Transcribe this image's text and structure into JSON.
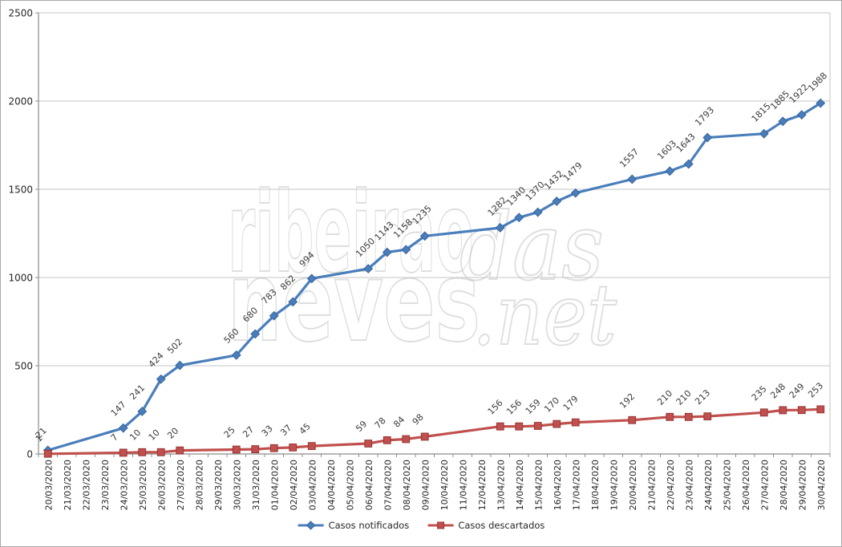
{
  "chart_data": {
    "type": "line",
    "title": "",
    "xlabel": "",
    "ylabel": "",
    "categories": [
      "20/03/2020",
      "21/03/2020",
      "22/03/2020",
      "23/03/2020",
      "24/03/2020",
      "25/03/2020",
      "26/03/2020",
      "27/03/2020",
      "28/03/2020",
      "29/03/2020",
      "30/03/2020",
      "31/03/2020",
      "01/04/2020",
      "02/04/2020",
      "03/04/2020",
      "04/04/2020",
      "05/04/2020",
      "06/04/2020",
      "07/04/2020",
      "08/04/2020",
      "09/04/2020",
      "10/04/2020",
      "11/04/2020",
      "12/04/2020",
      "13/04/2020",
      "14/04/2020",
      "15/04/2020",
      "16/04/2020",
      "17/04/2020",
      "18/04/2020",
      "19/04/2020",
      "20/04/2020",
      "21/04/2020",
      "22/04/2020",
      "23/04/2020",
      "24/04/2020",
      "25/04/2020",
      "26/04/2020",
      "27/04/2020",
      "28/04/2020",
      "29/04/2020",
      "30/04/2020"
    ],
    "series": [
      {
        "name": "Casos notificados",
        "color": "#4a7ebb",
        "marker": "diamond",
        "marker_edge": "#38639c",
        "values": [
          21,
          null,
          null,
          null,
          147,
          241,
          424,
          502,
          null,
          null,
          560,
          680,
          783,
          862,
          994,
          null,
          null,
          1050,
          1143,
          1158,
          1235,
          null,
          null,
          null,
          1282,
          1340,
          1370,
          1432,
          1479,
          null,
          null,
          1557,
          null,
          1603,
          1643,
          1793,
          null,
          null,
          1815,
          1885,
          1922,
          1988
        ]
      },
      {
        "name": "Casos descartados",
        "color": "#c0504d",
        "marker": "square",
        "marker_edge": "#953735",
        "values": [
          1,
          null,
          null,
          null,
          7,
          10,
          10,
          20,
          null,
          null,
          25,
          27,
          33,
          37,
          45,
          null,
          null,
          59,
          78,
          84,
          98,
          null,
          null,
          null,
          156,
          156,
          159,
          170,
          179,
          null,
          null,
          192,
          null,
          210,
          210,
          213,
          null,
          null,
          235,
          248,
          249,
          253
        ]
      }
    ],
    "ylim": [
      0,
      2500
    ],
    "yticks": [
      0,
      500,
      1000,
      1500,
      2000,
      2500
    ],
    "grid": true,
    "data_labels": true,
    "legend_position": "bottom-center"
  },
  "watermark": {
    "word1": "ribeirao",
    "word2": "das",
    "word3": "neves",
    "word4": ".net"
  },
  "colors": {
    "background": "#ffffff",
    "gridline": "#c6c6c6",
    "axis": "#8c8c8c",
    "tick_label": "#262626",
    "data_label": "#3b3b3b",
    "watermark_stroke": "#c4c4c4",
    "border": "#a8a8a8"
  }
}
